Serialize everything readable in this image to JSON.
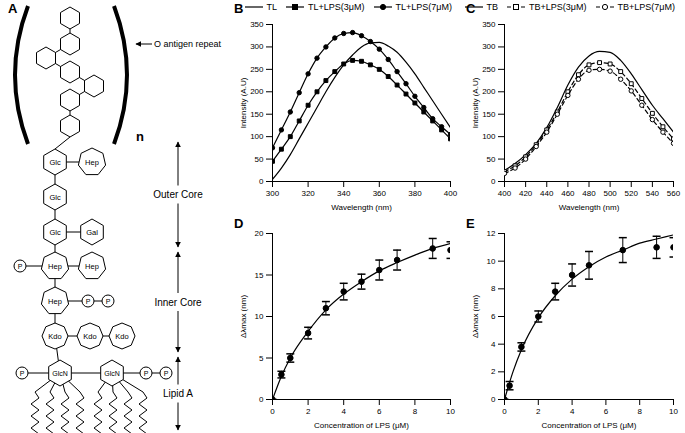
{
  "chart_data": [
    {
      "panel": "B",
      "type": "line",
      "xlabel": "Wavelength (nm)",
      "ylabel": "Intensity (A.U)",
      "x": [
        300,
        305,
        310,
        315,
        320,
        325,
        330,
        335,
        340,
        345,
        350,
        355,
        360,
        365,
        370,
        375,
        380,
        385,
        390,
        395,
        400
      ],
      "xlim": [
        300,
        400
      ],
      "xticks": [
        300,
        320,
        340,
        360,
        380,
        400
      ],
      "ylim": [
        0,
        350
      ],
      "yticks": [
        0,
        50,
        100,
        150,
        200,
        250,
        300,
        350
      ],
      "legend": "top right",
      "series": [
        {
          "name": "TL",
          "color": "#000000",
          "line_style": "solid",
          "marker": "none",
          "values": [
            5,
            30,
            60,
            95,
            130,
            165,
            200,
            232,
            260,
            282,
            300,
            309,
            310,
            302,
            288,
            266,
            240,
            210,
            180,
            150,
            120
          ]
        },
        {
          "name": "TL+LPS(3μM)",
          "color": "#000000",
          "line_style": "solid",
          "marker": "square",
          "values": [
            45,
            72,
            100,
            135,
            170,
            200,
            225,
            245,
            262,
            270,
            268,
            260,
            250,
            234,
            215,
            195,
            175,
            155,
            135,
            115,
            95
          ]
        },
        {
          "name": "TL+LPS(7μM)",
          "color": "#000000",
          "line_style": "solid",
          "marker": "circle",
          "values": [
            75,
            115,
            155,
            198,
            240,
            275,
            300,
            320,
            330,
            332,
            325,
            312,
            295,
            272,
            245,
            218,
            190,
            165,
            140,
            122,
            105
          ]
        }
      ]
    },
    {
      "panel": "C",
      "type": "line",
      "xlabel": "Wavelength (nm)",
      "ylabel": "Intensity (A.U)",
      "x": [
        400,
        410,
        420,
        430,
        440,
        450,
        460,
        470,
        480,
        490,
        500,
        510,
        520,
        530,
        540,
        550,
        560
      ],
      "xlim": [
        400,
        560
      ],
      "xticks": [
        400,
        420,
        440,
        460,
        480,
        500,
        520,
        540,
        560
      ],
      "ylim": [
        0,
        350
      ],
      "yticks": [
        0,
        50,
        100,
        150,
        200,
        250,
        300,
        350
      ],
      "legend": "top right",
      "series": [
        {
          "name": "TB",
          "color": "#000000",
          "line_style": "solid",
          "marker": "none",
          "values": [
            25,
            40,
            60,
            85,
            120,
            165,
            215,
            255,
            280,
            290,
            288,
            270,
            240,
            205,
            170,
            140,
            110
          ]
        },
        {
          "name": "TB+LPS(3μM)",
          "color": "#000000",
          "line_style": "dashed",
          "marker": "square-open",
          "values": [
            22,
            35,
            55,
            82,
            115,
            155,
            200,
            238,
            260,
            265,
            262,
            245,
            218,
            185,
            152,
            122,
            95
          ]
        },
        {
          "name": "TB+LPS(7μM)",
          "color": "#000000",
          "line_style": "dashed",
          "marker": "circle-open",
          "values": [
            18,
            30,
            50,
            78,
            110,
            150,
            192,
            228,
            248,
            250,
            246,
            228,
            202,
            170,
            138,
            110,
            85
          ]
        }
      ]
    },
    {
      "panel": "D",
      "type": "scatter",
      "xlabel": "Concentration of LPS (μM)",
      "ylabel": "Δλmax (nm)",
      "xlim": [
        0,
        10
      ],
      "xticks": [
        0,
        2,
        4,
        6,
        8,
        10
      ],
      "ylim": [
        0,
        20
      ],
      "yticks": [
        0,
        5,
        10,
        15,
        20
      ],
      "series": [
        {
          "type": "scatter",
          "color": "#000000",
          "marker": "circle",
          "x": [
            0,
            0.5,
            1,
            2,
            3,
            4,
            5,
            6,
            7,
            9,
            10
          ],
          "values": [
            0,
            3,
            5,
            8,
            11,
            13,
            14.2,
            15.6,
            16.8,
            18.2,
            18
          ],
          "error": [
            0,
            0.4,
            0.5,
            0.7,
            0.8,
            1,
            0.9,
            1.2,
            1.2,
            1.2,
            1
          ]
        },
        {
          "type": "line",
          "color": "#000000",
          "line_style": "solid",
          "x": [
            0,
            0.5,
            1,
            2,
            3,
            4,
            5,
            6,
            7,
            8,
            9,
            10
          ],
          "values": [
            0,
            2.8,
            5,
            8.2,
            10.8,
            12.7,
            14.2,
            15.5,
            16.5,
            17.4,
            18.2,
            18.8
          ]
        }
      ]
    },
    {
      "panel": "E",
      "type": "scatter",
      "xlabel": "Concentration of LPS (μM)",
      "ylabel": "Δλmax (nm)",
      "xlim": [
        0,
        10
      ],
      "xticks": [
        0,
        2,
        4,
        6,
        8,
        10
      ],
      "ylim": [
        0,
        12
      ],
      "yticks": [
        0,
        2,
        4,
        6,
        8,
        10,
        12
      ],
      "series": [
        {
          "type": "scatter",
          "color": "#000000",
          "marker": "circle",
          "x": [
            0,
            0.3,
            1,
            2,
            3,
            4,
            5,
            7,
            9,
            10
          ],
          "values": [
            0,
            1,
            3.8,
            6,
            7.8,
            9,
            9.7,
            10.8,
            11,
            11
          ],
          "error": [
            0,
            0.3,
            0.3,
            0.4,
            0.6,
            0.8,
            1,
            0.9,
            0.8,
            0.7
          ]
        },
        {
          "type": "line",
          "color": "#000000",
          "line_style": "solid",
          "x": [
            0,
            0.5,
            1,
            2,
            3,
            4,
            5,
            6,
            7,
            8,
            9,
            10
          ],
          "values": [
            0,
            2,
            3.6,
            5.9,
            7.5,
            8.7,
            9.6,
            10.3,
            10.8,
            11.3,
            11.6,
            11.9
          ]
        }
      ]
    }
  ],
  "diagram": {
    "panel": "A",
    "repeat_label": "n",
    "o_antigen_label": "O antigen repeat",
    "regions": [
      "Outer Core",
      "Inner Core",
      "Lipid A"
    ],
    "sugars": [
      "Glc",
      "Hep",
      "Glc",
      "Glc",
      "Gal",
      "Hep",
      "Hep",
      "Hep",
      "Kdo",
      "Kdo",
      "Kdo",
      "GlcN",
      "GlcN"
    ],
    "phosphates": [
      "P",
      "P",
      "P",
      "P",
      "P",
      "P"
    ]
  }
}
